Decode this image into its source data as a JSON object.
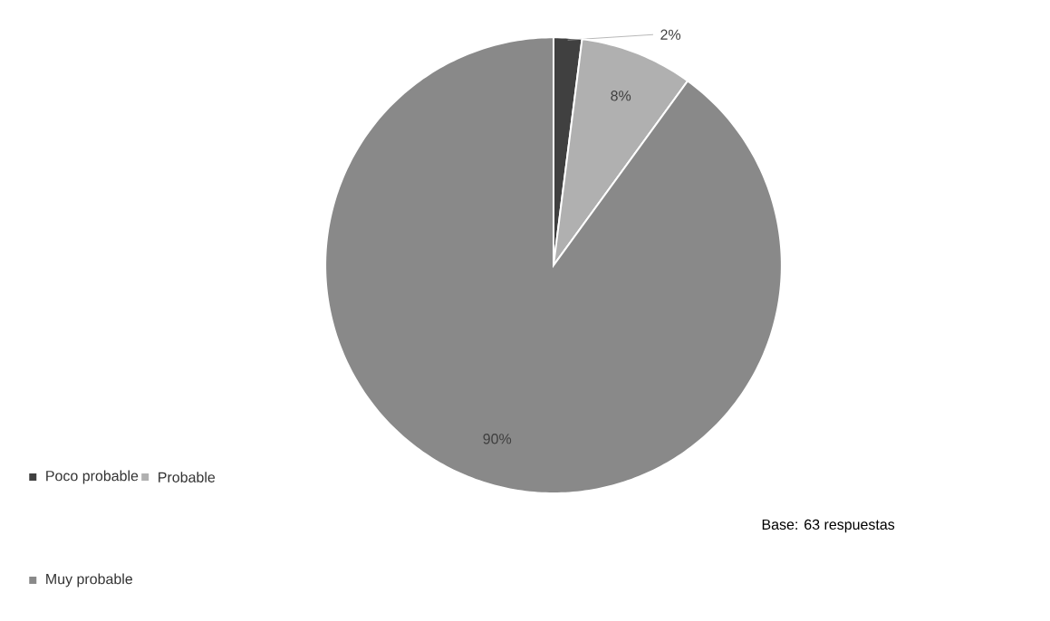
{
  "chart_data": {
    "type": "pie",
    "categories": [
      "Poco probable",
      "Probable",
      "Muy probable"
    ],
    "values": [
      2,
      8,
      90
    ],
    "colors": [
      "#404040",
      "#b0b0b0",
      "#898989"
    ],
    "value_labels": [
      "2%",
      "8%",
      "90%"
    ],
    "legend": "bottom left",
    "annotations": [
      "Base: 63 respuestas"
    ]
  }
}
